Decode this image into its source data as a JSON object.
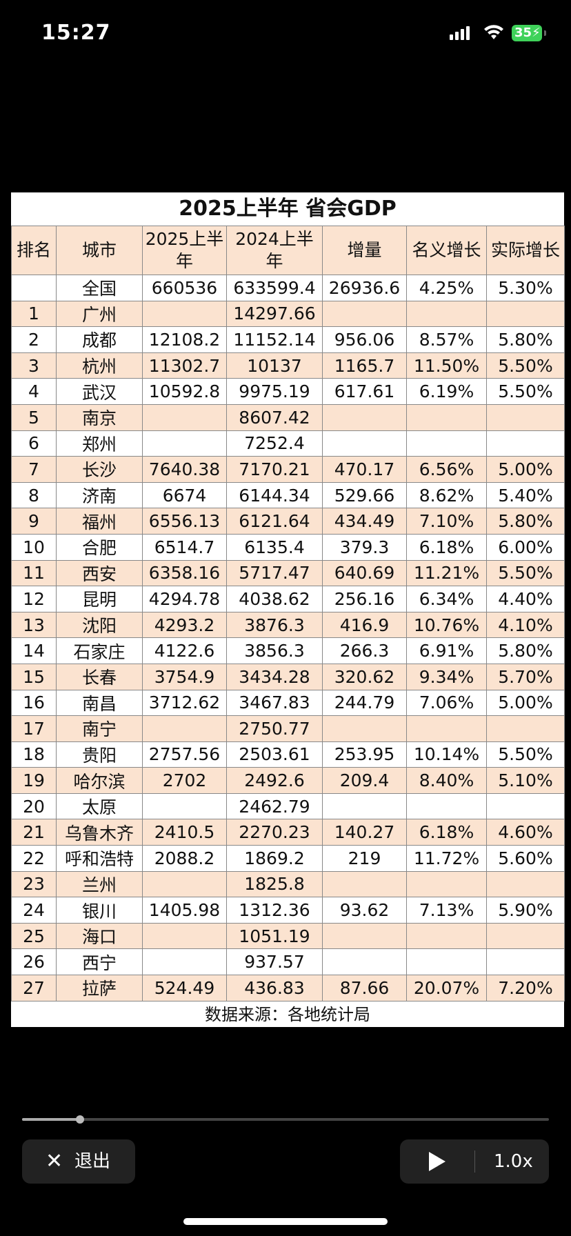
{
  "status_bar": {
    "time": "15:27",
    "battery": "35"
  },
  "sheet": {
    "title": "2025上半年 省会GDP",
    "headers": [
      "排名",
      "城市",
      "2025上半年",
      "2024上半年",
      "增量",
      "名义增长",
      "实际增长"
    ],
    "rows": [
      [
        "",
        "全国",
        "660536",
        "633599.4",
        "26936.6",
        "4.25%",
        "5.30%"
      ],
      [
        "1",
        "广州",
        "",
        "14297.66",
        "",
        "",
        ""
      ],
      [
        "2",
        "成都",
        "12108.2",
        "11152.14",
        "956.06",
        "8.57%",
        "5.80%"
      ],
      [
        "3",
        "杭州",
        "11302.7",
        "10137",
        "1165.7",
        "11.50%",
        "5.50%"
      ],
      [
        "4",
        "武汉",
        "10592.8",
        "9975.19",
        "617.61",
        "6.19%",
        "5.50%"
      ],
      [
        "5",
        "南京",
        "",
        "8607.42",
        "",
        "",
        ""
      ],
      [
        "6",
        "郑州",
        "",
        "7252.4",
        "",
        "",
        ""
      ],
      [
        "7",
        "长沙",
        "7640.38",
        "7170.21",
        "470.17",
        "6.56%",
        "5.00%"
      ],
      [
        "8",
        "济南",
        "6674",
        "6144.34",
        "529.66",
        "8.62%",
        "5.40%"
      ],
      [
        "9",
        "福州",
        "6556.13",
        "6121.64",
        "434.49",
        "7.10%",
        "5.80%"
      ],
      [
        "10",
        "合肥",
        "6514.7",
        "6135.4",
        "379.3",
        "6.18%",
        "6.00%"
      ],
      [
        "11",
        "西安",
        "6358.16",
        "5717.47",
        "640.69",
        "11.21%",
        "5.50%"
      ],
      [
        "12",
        "昆明",
        "4294.78",
        "4038.62",
        "256.16",
        "6.34%",
        "4.40%"
      ],
      [
        "13",
        "沈阳",
        "4293.2",
        "3876.3",
        "416.9",
        "10.76%",
        "4.10%"
      ],
      [
        "14",
        "石家庄",
        "4122.6",
        "3856.3",
        "266.3",
        "6.91%",
        "5.80%"
      ],
      [
        "15",
        "长春",
        "3754.9",
        "3434.28",
        "320.62",
        "9.34%",
        "5.70%"
      ],
      [
        "16",
        "南昌",
        "3712.62",
        "3467.83",
        "244.79",
        "7.06%",
        "5.00%"
      ],
      [
        "17",
        "南宁",
        "",
        "2750.77",
        "",
        "",
        ""
      ],
      [
        "18",
        "贵阳",
        "2757.56",
        "2503.61",
        "253.95",
        "10.14%",
        "5.50%"
      ],
      [
        "19",
        "哈尔滨",
        "2702",
        "2492.6",
        "209.4",
        "8.40%",
        "5.10%"
      ],
      [
        "20",
        "太原",
        "",
        "2462.79",
        "",
        "",
        ""
      ],
      [
        "21",
        "乌鲁木齐",
        "2410.5",
        "2270.23",
        "140.27",
        "6.18%",
        "4.60%"
      ],
      [
        "22",
        "呼和浩特",
        "2088.2",
        "1869.2",
        "219",
        "11.72%",
        "5.60%"
      ],
      [
        "23",
        "兰州",
        "",
        "1825.8",
        "",
        "",
        ""
      ],
      [
        "24",
        "银川",
        "1405.98",
        "1312.36",
        "93.62",
        "7.13%",
        "5.90%"
      ],
      [
        "25",
        "海口",
        "",
        "1051.19",
        "",
        "",
        ""
      ],
      [
        "26",
        "西宁",
        "",
        "937.57",
        "",
        "",
        ""
      ],
      [
        "27",
        "拉萨",
        "524.49",
        "436.83",
        "87.66",
        "20.07%",
        "7.20%"
      ]
    ],
    "source": "数据来源：各地统计局"
  },
  "player": {
    "progress": 0.11,
    "exit_label": "退出",
    "speed_label": "1.0x",
    "icons": {
      "exit": "close-icon",
      "play": "play-icon"
    }
  },
  "colors": {
    "row_highlight": "#fbe3d0",
    "battery": "#3fd25a"
  }
}
